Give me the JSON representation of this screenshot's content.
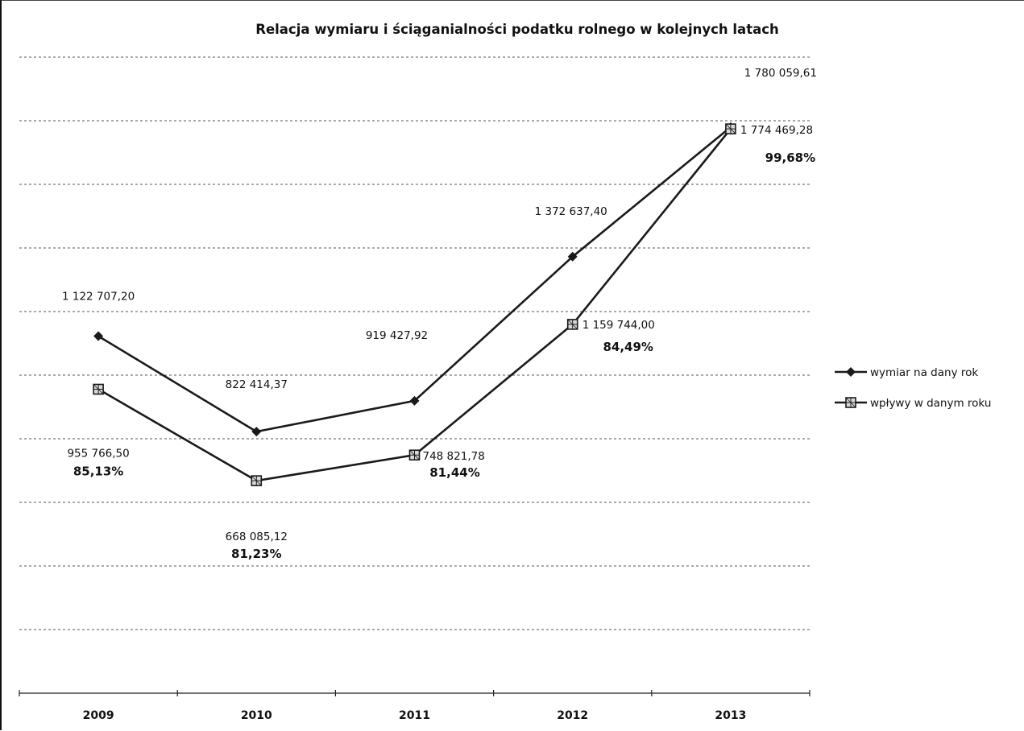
{
  "chart_data": {
    "type": "line",
    "title": "Relacja wymiaru i ściąganialności podatku rolnego w kolejnych latach",
    "categories": [
      "2009",
      "2010",
      "2011",
      "2012",
      "2013"
    ],
    "series": [
      {
        "name": "wymiar na dany rok",
        "marker": "diamond",
        "values": [
          1122707.2,
          822414.37,
          919427.92,
          1372637.4,
          1780059.61
        ],
        "labels": [
          "1 122 707,20",
          "822 414,37",
          "919 427,92",
          "1 372 637,40",
          "1 780 059,61"
        ]
      },
      {
        "name": "wpływy w danym roku",
        "marker": "square",
        "values": [
          955766.5,
          668085.12,
          748821.78,
          1159744.0,
          1774469.28
        ],
        "labels": [
          "955 766,50",
          "668 085,12",
          "748 821,78",
          "1 159 744,00",
          "1 774 469,28"
        ],
        "percentages": [
          "85,13%",
          "81,23%",
          "81,44%",
          "84,49%",
          "99,68%"
        ]
      }
    ],
    "ylim": [
      0,
      2000000
    ],
    "grid": true,
    "legend": "right",
    "colors": {
      "line": "#1a1a1a",
      "grid": "#555555",
      "background": "#ffffff"
    }
  }
}
